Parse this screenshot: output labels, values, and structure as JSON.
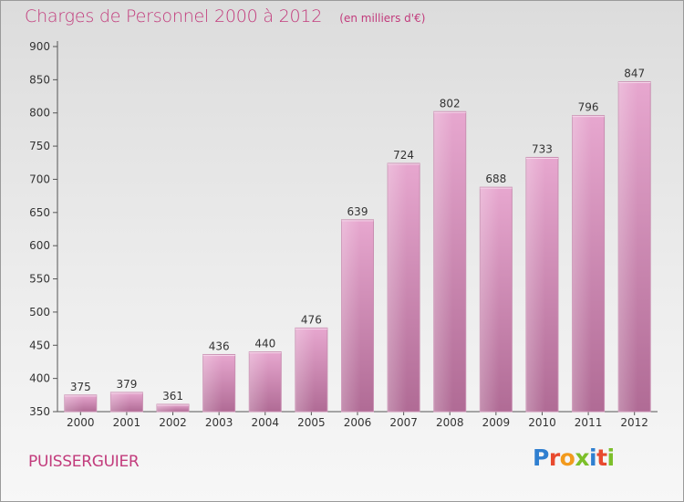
{
  "title": "Charges de Personnel 2000 à 2012",
  "subtitle": "(en milliers d'€)",
  "town": "PUISSERGUIER",
  "logo_text": "Proxiti",
  "colors": {
    "title": "#c23b7c",
    "bar_top": "#e7a7cf",
    "bar_bottom": "#b06b95"
  },
  "chart_data": {
    "type": "bar",
    "title": "Charges de Personnel 2000 à 2012",
    "subtitle": "(en milliers d'€)",
    "categories": [
      "2000",
      "2001",
      "2002",
      "2003",
      "2004",
      "2005",
      "2006",
      "2007",
      "2008",
      "2009",
      "2010",
      "2011",
      "2012"
    ],
    "values": [
      375,
      379,
      361,
      436,
      440,
      476,
      639,
      724,
      802,
      688,
      733,
      796,
      847
    ],
    "ylim": [
      350,
      900
    ],
    "yticks": [
      350,
      400,
      450,
      500,
      550,
      600,
      650,
      700,
      750,
      800,
      850,
      900
    ],
    "grid": false,
    "data_labels": true
  }
}
